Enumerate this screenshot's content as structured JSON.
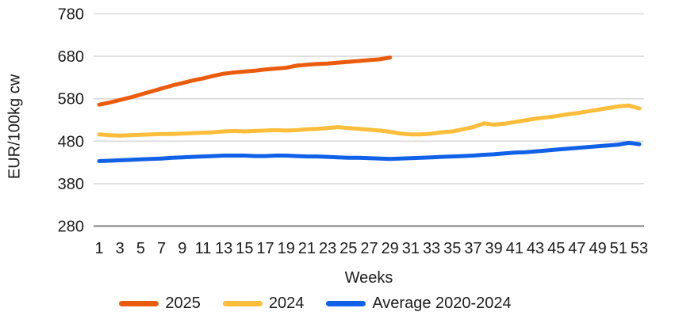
{
  "colors": {
    "background": "#FFFFFF",
    "gridline": "#D9D9D9",
    "baseline": "#8C8C8C",
    "text": "#1D1D1D",
    "series_2025": "#EB5B0E",
    "series_2024": "#FBBD3A",
    "series_average": "#1160E8"
  },
  "chart_data": {
    "type": "line",
    "title": "",
    "xlabel": "Weeks",
    "ylabel": "EUR/100kg cw",
    "ylim": [
      280,
      780
    ],
    "yticks": [
      780,
      680,
      580,
      480,
      380,
      280
    ],
    "xticks": [
      1,
      3,
      5,
      7,
      9,
      11,
      13,
      15,
      17,
      19,
      21,
      23,
      25,
      27,
      29,
      31,
      33,
      35,
      37,
      39,
      41,
      43,
      45,
      47,
      49,
      51,
      53
    ],
    "x_range_weeks": [
      1,
      53
    ],
    "grid": "horizontal-only",
    "legend_position": "bottom",
    "series": [
      {
        "name": "2025",
        "color": "#EB5B0E",
        "start_week": 1,
        "values": [
          566,
          571,
          577,
          583,
          590,
          597,
          604,
          611,
          617,
          623,
          628,
          634,
          639,
          642,
          644,
          646,
          649,
          651,
          653,
          658,
          660,
          662,
          663,
          665,
          667,
          669,
          671,
          673,
          677
        ]
      },
      {
        "name": "2024",
        "color": "#FBBD3A",
        "start_week": 1,
        "values": [
          496,
          494,
          493,
          494,
          495,
          496,
          497,
          497,
          498,
          499,
          500,
          501,
          503,
          504,
          503,
          504,
          505,
          506,
          505,
          506,
          508,
          509,
          511,
          513,
          511,
          509,
          507,
          505,
          502,
          498,
          496,
          496,
          498,
          501,
          503,
          508,
          513,
          522,
          519,
          521,
          525,
          529,
          533,
          536,
          539,
          543,
          546,
          550,
          554,
          558,
          562,
          564,
          557
        ]
      },
      {
        "name": "Average 2020-2024",
        "color": "#1160E8",
        "start_week": 1,
        "values": [
          433,
          434,
          435,
          436,
          437,
          438,
          439,
          441,
          442,
          443,
          444,
          445,
          446,
          446,
          446,
          445,
          445,
          446,
          446,
          445,
          444,
          444,
          443,
          442,
          441,
          441,
          440,
          439,
          438,
          439,
          440,
          441,
          442,
          443,
          444,
          445,
          446,
          448,
          449,
          451,
          453,
          454,
          456,
          458,
          460,
          462,
          464,
          466,
          468,
          470,
          472,
          476,
          473
        ]
      }
    ]
  }
}
